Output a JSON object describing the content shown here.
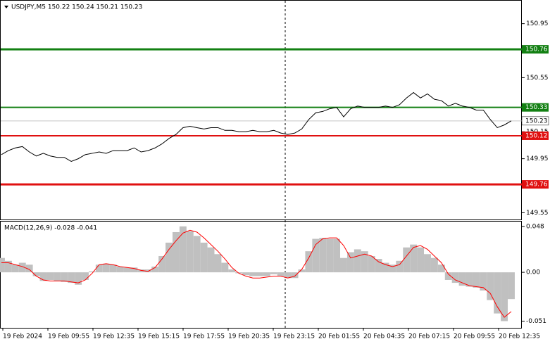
{
  "chart_data": [
    {
      "type": "price",
      "title": "USDJPY,M5  150.22 150.24 150.21 150.23",
      "xtick_labels": [
        "19 Feb 2024",
        "19 Feb 09:55",
        "19 Feb 12:35",
        "19 Feb 15:15",
        "19 Feb 17:55",
        "19 Feb 20:35",
        "19 Feb 23:15",
        "20 Feb 01:55",
        "20 Feb 04:35",
        "20 Feb 07:15",
        "20 Feb 09:55",
        "20 Feb 12:35"
      ],
      "values": [
        149.98,
        150.01,
        150.03,
        150.04,
        150.0,
        149.97,
        149.99,
        149.97,
        149.96,
        149.96,
        149.93,
        149.95,
        149.98,
        149.99,
        150.0,
        149.99,
        150.01,
        150.01,
        150.01,
        150.03,
        150.0,
        150.01,
        150.03,
        150.06,
        150.1,
        150.13,
        150.18,
        150.19,
        150.18,
        150.17,
        150.18,
        150.18,
        150.16,
        150.16,
        150.15,
        150.15,
        150.16,
        150.15,
        150.15,
        150.16,
        150.14,
        150.13,
        150.14,
        150.17,
        150.24,
        150.29,
        150.3,
        150.32,
        150.33,
        150.26,
        150.32,
        150.34,
        150.33,
        150.33,
        150.33,
        150.34,
        150.33,
        150.35,
        150.4,
        150.44,
        150.4,
        150.43,
        150.39,
        150.38,
        150.34,
        150.36,
        150.34,
        150.33,
        150.31,
        150.31,
        150.24,
        150.18,
        150.2,
        150.23
      ],
      "color": "#000000",
      "ylim": [
        149.5,
        151.12
      ],
      "yticks": [
        149.55,
        149.95,
        150.15,
        150.55,
        150.95
      ],
      "levels": [
        {
          "value": 150.76,
          "color": "#138013",
          "width": 3
        },
        {
          "value": 150.33,
          "color": "#138013",
          "width": 2
        },
        {
          "value": 150.12,
          "color": "#e01010",
          "width": 2
        },
        {
          "value": 149.76,
          "color": "#e01010",
          "width": 3
        }
      ],
      "last_price": 150.23
    },
    {
      "type": "macd",
      "title": "MACD(12,26,9) -0.028 -0.041",
      "values": [
        0.015,
        0.012,
        0.008,
        0.01,
        0.008,
        -0.004,
        -0.009,
        -0.008,
        -0.009,
        -0.01,
        -0.011,
        -0.013,
        -0.008,
        0.001,
        0.008,
        0.009,
        0.008,
        0.006,
        0.005,
        0.005,
        0.003,
        0.003,
        0.006,
        0.017,
        0.031,
        0.042,
        0.048,
        0.043,
        0.038,
        0.031,
        0.026,
        0.019,
        0.01,
        0.003,
        -0.001,
        -0.003,
        -0.004,
        -0.004,
        -0.004,
        -0.002,
        -0.004,
        -0.006,
        -0.006,
        0.003,
        0.022,
        0.035,
        0.036,
        0.035,
        0.035,
        0.015,
        0.021,
        0.024,
        0.022,
        0.017,
        0.014,
        0.01,
        0.008,
        0.012,
        0.026,
        0.029,
        0.026,
        0.019,
        0.015,
        0.008,
        -0.008,
        -0.011,
        -0.014,
        -0.015,
        -0.016,
        -0.019,
        -0.029,
        -0.043,
        -0.051,
        -0.028
      ],
      "color": "#c0c0c0",
      "signal": [
        0.01,
        0.01,
        0.008,
        0.006,
        0.003,
        -0.004,
        -0.008,
        -0.009,
        -0.009,
        -0.009,
        -0.01,
        -0.011,
        -0.008,
        -0.001,
        0.008,
        0.009,
        0.008,
        0.006,
        0.005,
        0.004,
        0.002,
        0.001,
        0.005,
        0.014,
        0.024,
        0.033,
        0.041,
        0.044,
        0.042,
        0.036,
        0.029,
        0.022,
        0.014,
        0.005,
        -0.001,
        -0.004,
        -0.006,
        -0.006,
        -0.005,
        -0.004,
        -0.004,
        -0.006,
        -0.004,
        0.003,
        0.015,
        0.029,
        0.035,
        0.036,
        0.036,
        0.028,
        0.015,
        0.017,
        0.019,
        0.017,
        0.011,
        0.008,
        0.006,
        0.008,
        0.017,
        0.026,
        0.028,
        0.024,
        0.017,
        0.01,
        -0.002,
        -0.008,
        -0.011,
        -0.014,
        -0.015,
        -0.016,
        -0.022,
        -0.036,
        -0.047,
        -0.041
      ],
      "signal_color": "#ff0000",
      "ylim": [
        -0.058,
        0.053
      ],
      "yticks": [
        0.048,
        {
          "value": 0,
          "label": "0.00"
        },
        -0.051
      ]
    }
  ]
}
